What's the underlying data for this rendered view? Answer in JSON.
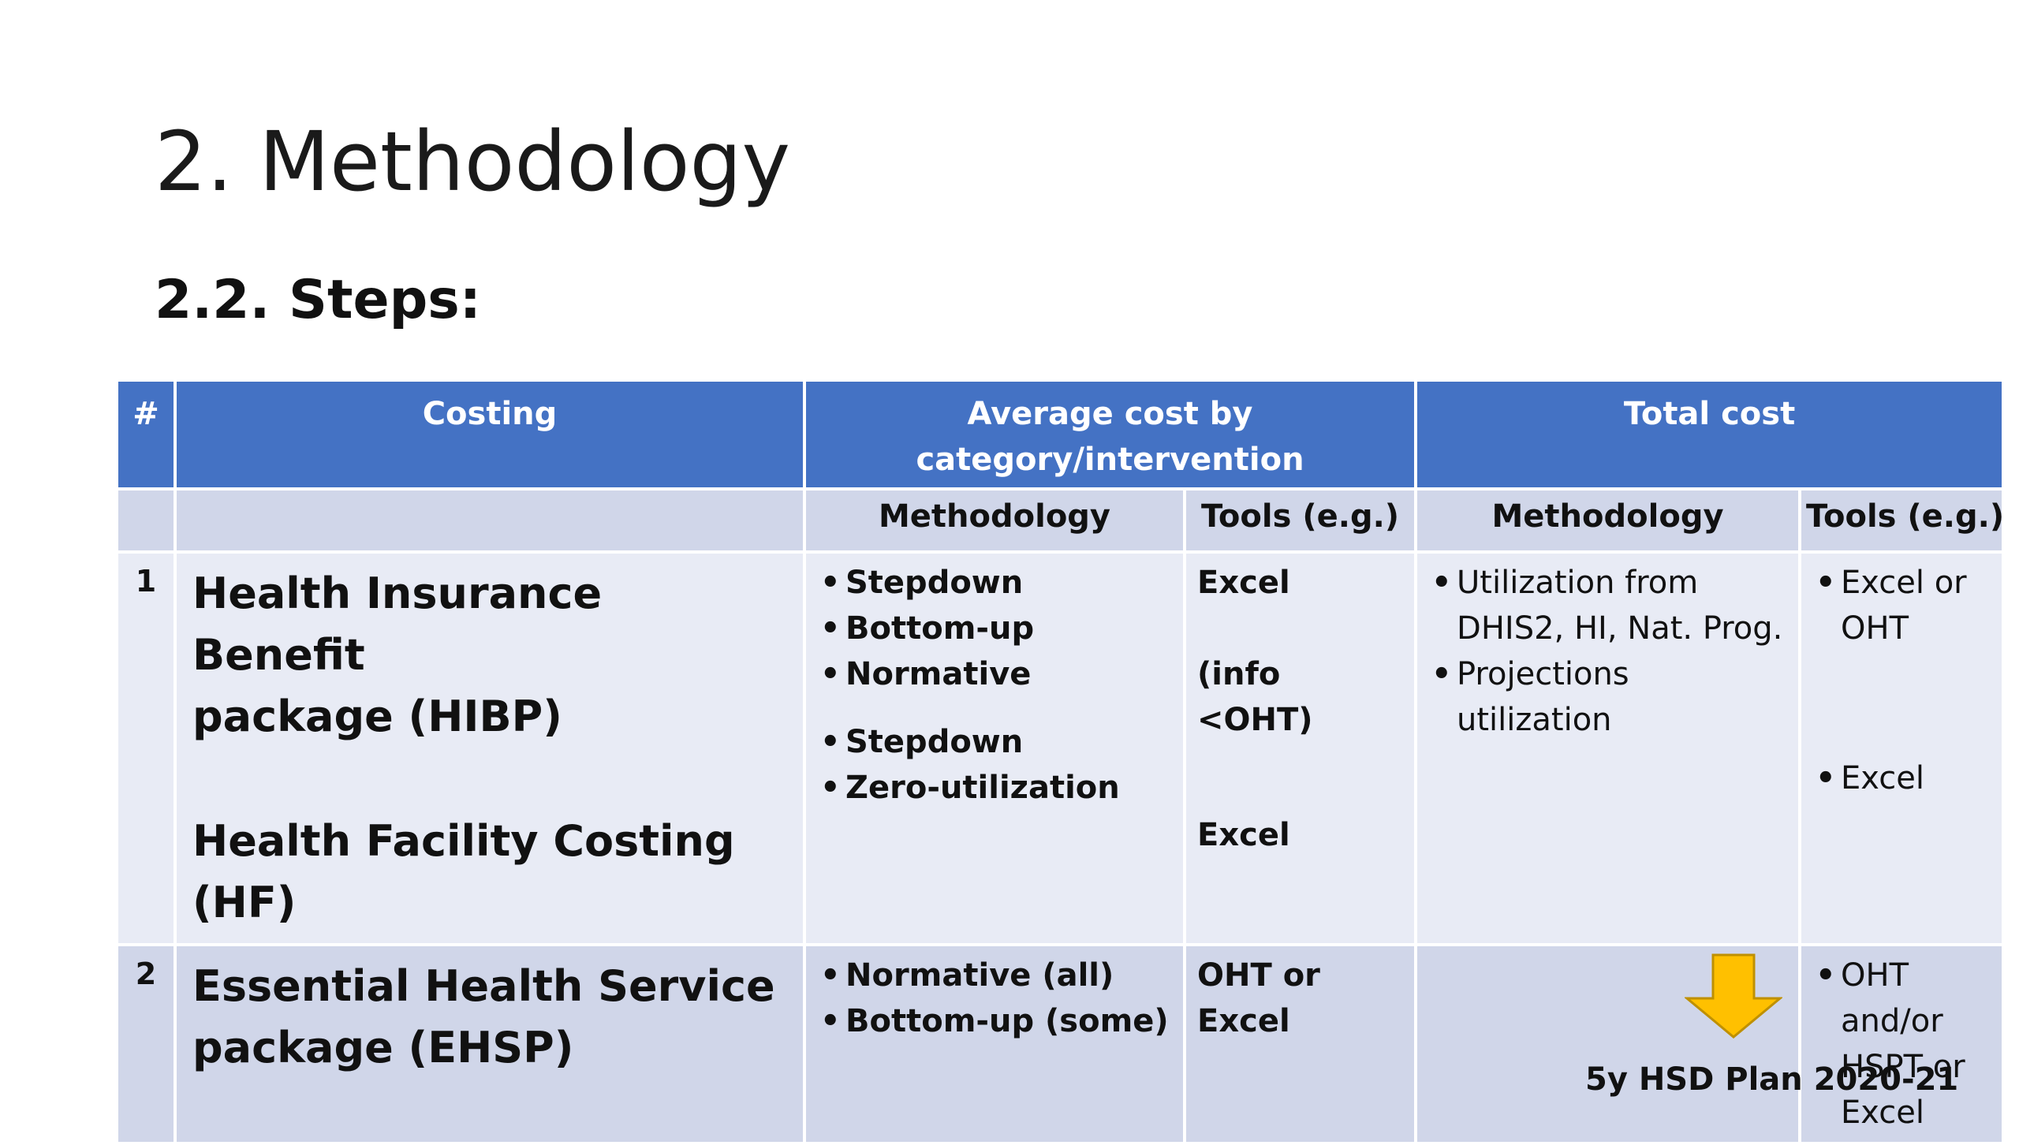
{
  "slide": {
    "title": "2. Methodology",
    "subtitle": "2.2. Steps:",
    "footnote": "5y HSD Plan 2020-21",
    "colors": {
      "header_blue": "#4472c4",
      "row_light": "#e8ebf5",
      "row_dark": "#d0d6e9",
      "arrow_fill": "#ffc000",
      "arrow_stroke": "#bf9000"
    },
    "arrow_icon": "down-arrow-icon"
  },
  "table": {
    "headers": {
      "hash": "#",
      "costing": "Costing",
      "average_cost_line1": "Average cost by",
      "average_cost_line2": "category/intervention",
      "total_cost": "Total cost"
    },
    "subheaders": {
      "avg_methodology": "Methodology",
      "avg_tools": "Tools (e.g.)",
      "total_methodology": "Methodology",
      "total_tools": "Tools (e.g.)"
    },
    "rows": [
      {
        "num": "1",
        "costing_line1": "Health Insurance Benefit",
        "costing_line2": "package (HIBP)",
        "costing_line3": "Health Facility Costing (HF)",
        "avg_methods_a": [
          "Stepdown",
          "Bottom-up",
          "Normative"
        ],
        "avg_methods_b": [
          "Stepdown",
          "Zero-utilization"
        ],
        "avg_tools": [
          "Excel",
          "(info <OHT)",
          "Excel"
        ],
        "total_methods": [
          "Utilization from DHIS2, HI, Nat. Prog.",
          "Projections utilization"
        ],
        "total_tools": [
          "Excel or OHT",
          "Excel"
        ]
      },
      {
        "num": "2",
        "costing_line1": "Essential Health Service",
        "costing_line2": "package (EHSP)",
        "avg_methods": [
          "Normative (all)",
          "Bottom-up (some)"
        ],
        "avg_tools": [
          "OHT or Excel"
        ],
        "total_methods": [],
        "total_tools": [
          "OHT and/or HSPT or Excel"
        ]
      }
    ]
  }
}
